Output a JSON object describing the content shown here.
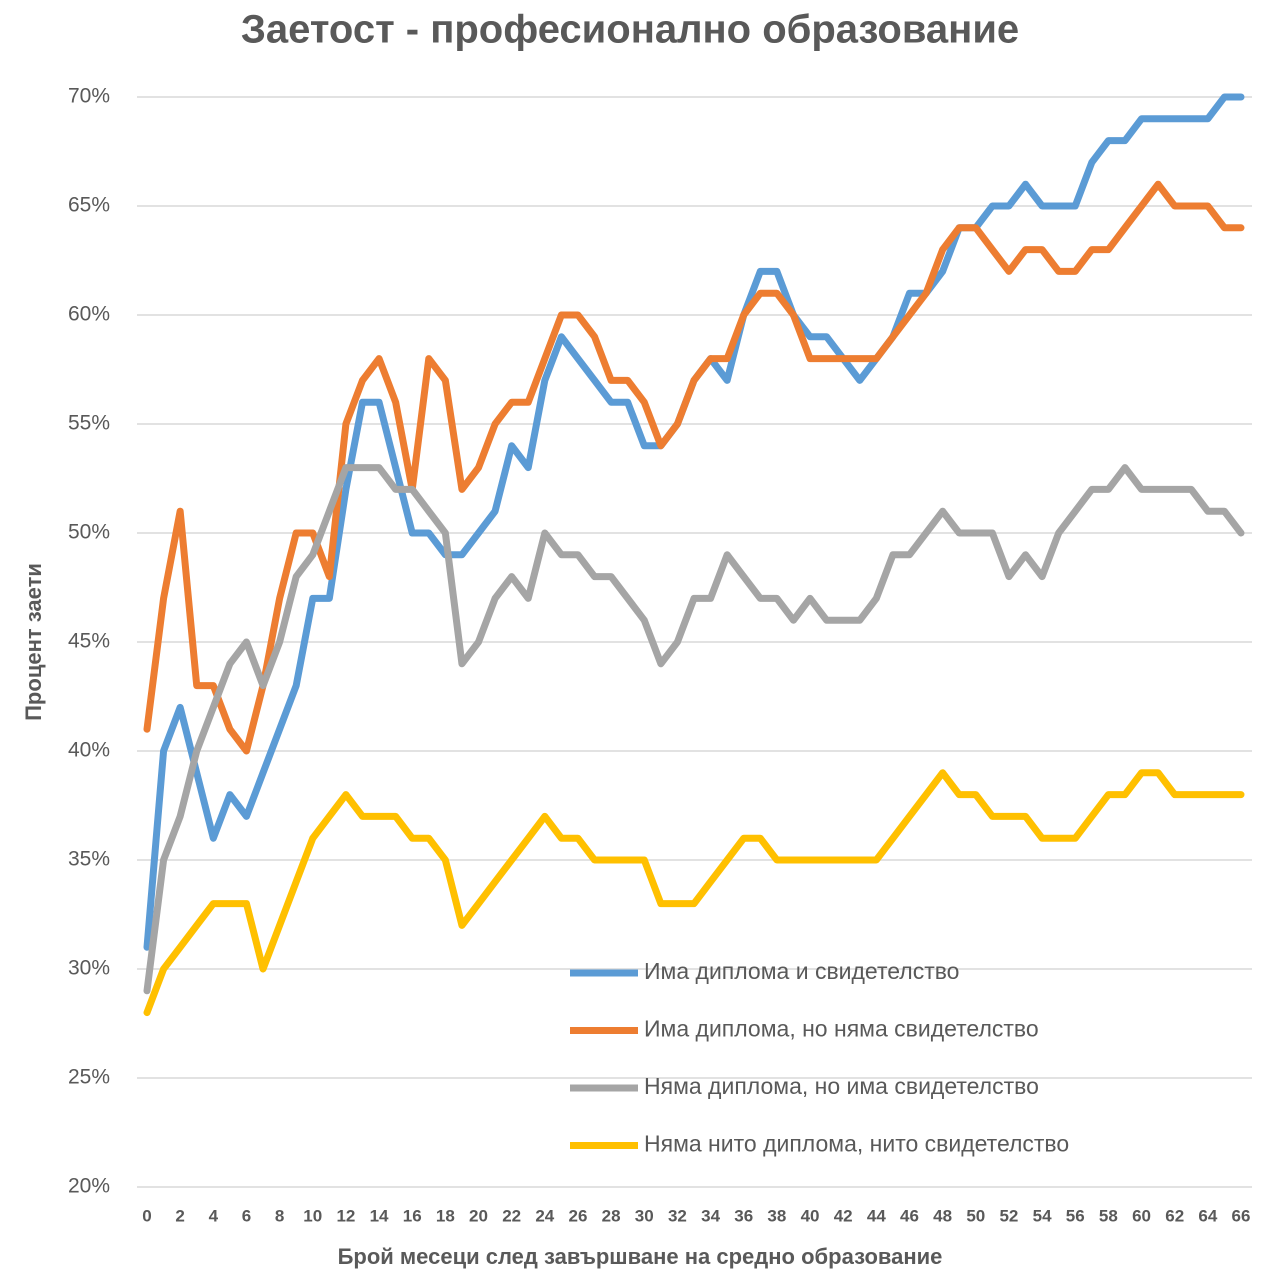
{
  "chart_data": {
    "type": "line",
    "title": "Заетост - професионално образование",
    "x_label": "Брой месеци след завършване на средно образование",
    "y_label": "Процент заети",
    "x": [
      0,
      1,
      2,
      3,
      4,
      5,
      6,
      7,
      8,
      9,
      10,
      11,
      12,
      13,
      14,
      15,
      16,
      17,
      18,
      19,
      20,
      21,
      22,
      23,
      24,
      25,
      26,
      27,
      28,
      29,
      30,
      31,
      32,
      33,
      34,
      35,
      36,
      37,
      38,
      39,
      40,
      41,
      42,
      43,
      44,
      45,
      46,
      47,
      48,
      49,
      50,
      51,
      52,
      53,
      54,
      55,
      56,
      57,
      58,
      59,
      60,
      61,
      62,
      63,
      64,
      65,
      66
    ],
    "xlim": [
      0,
      66
    ],
    "xticks": [
      0,
      2,
      4,
      6,
      8,
      10,
      12,
      14,
      16,
      18,
      20,
      22,
      24,
      26,
      28,
      30,
      32,
      34,
      36,
      38,
      40,
      42,
      44,
      46,
      48,
      50,
      52,
      54,
      56,
      58,
      60,
      62,
      64,
      66
    ],
    "ylim": [
      20,
      70
    ],
    "yticks": [
      {
        "value": 20,
        "label": "20%"
      },
      {
        "value": 25,
        "label": "25%"
      },
      {
        "value": 30,
        "label": "30%"
      },
      {
        "value": 35,
        "label": "35%"
      },
      {
        "value": 40,
        "label": "40%"
      },
      {
        "value": 45,
        "label": "45%"
      },
      {
        "value": 50,
        "label": "50%"
      },
      {
        "value": 55,
        "label": "55%"
      },
      {
        "value": 60,
        "label": "60%"
      },
      {
        "value": 65,
        "label": "65%"
      },
      {
        "value": 70,
        "label": "70%"
      }
    ],
    "grid": true,
    "legend": "lower right",
    "series": [
      {
        "name": "Има диплома и свидетелство",
        "color": "#5b9bd5",
        "values": [
          31,
          40,
          42,
          39,
          36,
          38,
          37,
          39,
          41,
          43,
          47,
          47,
          52,
          56,
          56,
          53,
          50,
          50,
          49,
          49,
          50,
          51,
          54,
          53,
          57,
          59,
          58,
          57,
          56,
          56,
          54,
          54,
          55,
          57,
          58,
          57,
          60,
          62,
          62,
          60,
          59,
          59,
          58,
          57,
          58,
          59,
          61,
          61,
          62,
          64,
          64,
          65,
          65,
          66,
          65,
          65,
          65,
          67,
          68,
          68,
          69,
          69,
          69,
          69,
          69,
          70,
          70
        ]
      },
      {
        "name": "Има диплома, но няма свидетелство",
        "color": "#ed7d31",
        "values": [
          41,
          47,
          51,
          43,
          43,
          41,
          40,
          43,
          47,
          50,
          50,
          48,
          55,
          57,
          58,
          56,
          52,
          58,
          57,
          52,
          53,
          55,
          56,
          56,
          58,
          60,
          60,
          59,
          57,
          57,
          56,
          54,
          55,
          57,
          58,
          58,
          60,
          61,
          61,
          60,
          58,
          58,
          58,
          58,
          58,
          59,
          60,
          61,
          63,
          64,
          64,
          63,
          62,
          63,
          63,
          62,
          62,
          63,
          63,
          64,
          65,
          66,
          65,
          65,
          65,
          64,
          64
        ]
      },
      {
        "name": "Няма диплома, но има свидетелство",
        "color": "#a5a5a5",
        "values": [
          29,
          35,
          37,
          40,
          42,
          44,
          45,
          43,
          45,
          48,
          49,
          51,
          53,
          53,
          53,
          52,
          52,
          51,
          50,
          44,
          45,
          47,
          48,
          47,
          50,
          49,
          49,
          48,
          48,
          47,
          46,
          44,
          45,
          47,
          47,
          49,
          48,
          47,
          47,
          46,
          47,
          46,
          46,
          46,
          47,
          49,
          49,
          50,
          51,
          50,
          50,
          50,
          48,
          49,
          48,
          50,
          51,
          52,
          52,
          53,
          52,
          52,
          52,
          52,
          51,
          51,
          50
        ]
      },
      {
        "name": "Няма нито диплома, нито свидетелство",
        "color": "#ffc000",
        "values": [
          28,
          30,
          31,
          32,
          33,
          33,
          33,
          30,
          32,
          34,
          36,
          37,
          38,
          37,
          37,
          37,
          36,
          36,
          35,
          32,
          33,
          34,
          35,
          36,
          37,
          36,
          36,
          35,
          35,
          35,
          35,
          33,
          33,
          33,
          34,
          35,
          36,
          36,
          35,
          35,
          35,
          35,
          35,
          35,
          35,
          36,
          37,
          38,
          39,
          38,
          38,
          37,
          37,
          37,
          36,
          36,
          36,
          37,
          38,
          38,
          39,
          39,
          38,
          38,
          38,
          38,
          38
        ]
      }
    ]
  }
}
